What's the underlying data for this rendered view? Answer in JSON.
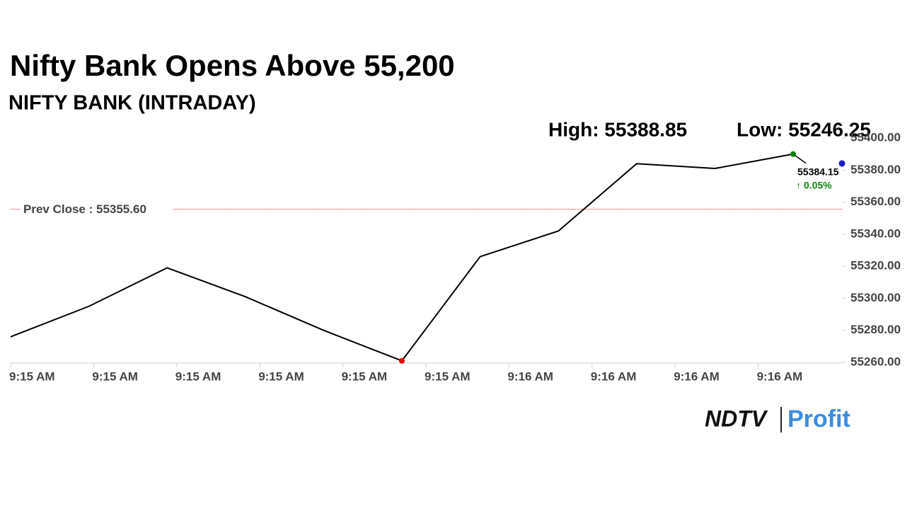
{
  "chart_data": {
    "type": "line",
    "title": "Nifty Bank Opens Above 55,200",
    "subtitle": "NIFTY BANK (INTRADAY)",
    "high_label": "High: 55388.85",
    "low_label": "Low: 55246.25",
    "xtick_labels": [
      "9:15 AM",
      "9:15 AM",
      "9:15 AM",
      "9:15 AM",
      "9:15 AM",
      "9:15 AM",
      "9:16 AM",
      "9:16 AM",
      "9:16 AM",
      "9:16 AM"
    ],
    "series": [
      {
        "name": "NIFTY BANK",
        "color": "#000000",
        "values": [
          55276,
          55295,
          55319,
          55301,
          55280,
          55261,
          55326,
          55342,
          55384,
          55381,
          55390
        ]
      }
    ],
    "min_marker_color": "#e00000",
    "last_marker_color": "#008000",
    "current_value": 55384.15,
    "current_color": "#1a1acc",
    "change_label": "↑ 0.05%",
    "change_color": "#118811",
    "prev_close": 55355.6,
    "prev_close_label": "Prev Close : 55355.60",
    "prev_close_color": "#cc3333",
    "ylim": [
      55260,
      55400
    ],
    "yticks": [
      {
        "value": 55260,
        "label": "55260.00"
      },
      {
        "value": 55280,
        "label": "55280.00"
      },
      {
        "value": 55300,
        "label": "55300.00"
      },
      {
        "value": 55320,
        "label": "55320.00"
      },
      {
        "value": 55340,
        "label": "55340.00"
      },
      {
        "value": 55360,
        "label": "55360.00"
      },
      {
        "value": 55380,
        "label": "55380.00"
      },
      {
        "value": 55400,
        "label": "55400.00"
      }
    ],
    "logo": {
      "brand": "NDTV",
      "product": "Profit"
    }
  }
}
